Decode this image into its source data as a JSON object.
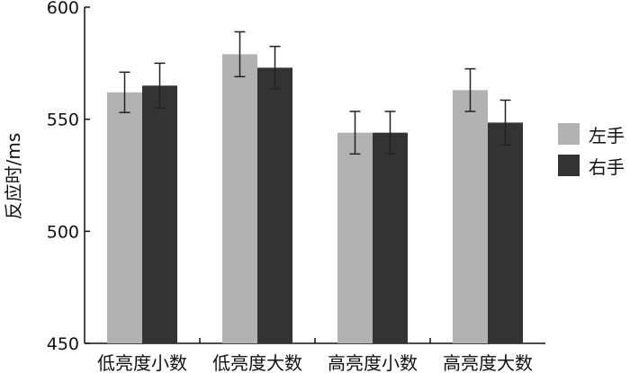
{
  "chart_data": {
    "type": "bar",
    "title": "",
    "xlabel": "",
    "ylabel": "反应时/ms",
    "ylim": [
      450,
      600
    ],
    "yticks": [
      450,
      500,
      550,
      600
    ],
    "grid": false,
    "legend_position": "right",
    "categories": [
      "低亮度小数",
      "低亮度大数",
      "高亮度小数",
      "高亮度大数"
    ],
    "series": [
      {
        "name": "左手",
        "color": "#b2b2b2",
        "values": [
          562,
          579,
          544,
          563
        ],
        "error": [
          9,
          10,
          9.5,
          9.5
        ]
      },
      {
        "name": "右手",
        "color": "#333333",
        "values": [
          565,
          573,
          544,
          548.5
        ],
        "error": [
          10,
          9.5,
          9.5,
          10
        ]
      }
    ]
  }
}
